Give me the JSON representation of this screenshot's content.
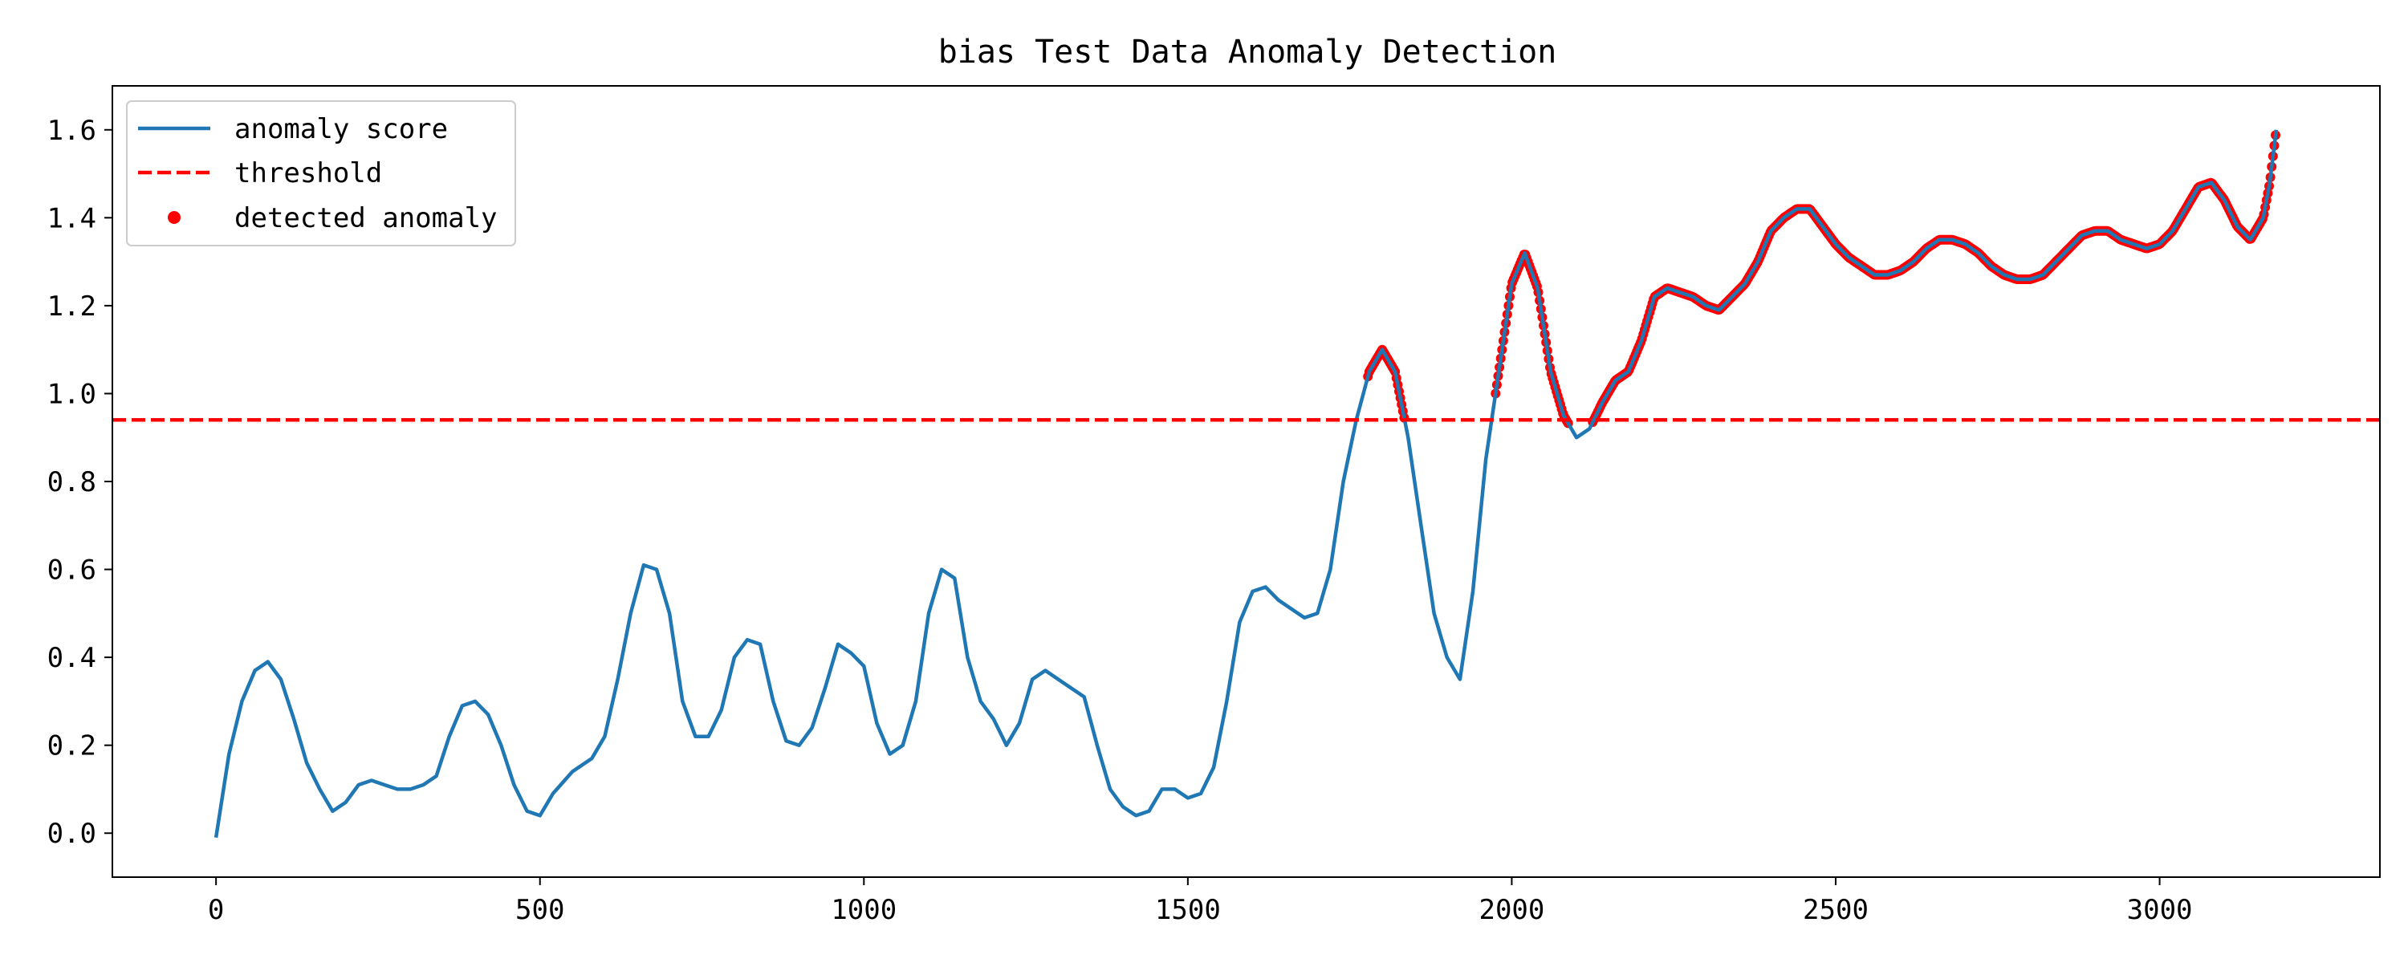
{
  "chart_data": {
    "type": "line",
    "title": "bias Test Data Anomaly Detection",
    "xlabel": "",
    "ylabel": "",
    "xlim": [
      -160,
      3340
    ],
    "ylim": [
      -0.1,
      1.7
    ],
    "xticks": [
      0,
      500,
      1000,
      1500,
      2000,
      2500,
      3000
    ],
    "yticks": [
      0.0,
      0.2,
      0.4,
      0.6,
      0.8,
      1.0,
      1.2,
      1.4,
      1.6
    ],
    "ytick_labels": [
      "0.0",
      "0.2",
      "0.4",
      "0.6",
      "0.8",
      "1.0",
      "1.2",
      "1.4",
      "1.6"
    ],
    "grid": false,
    "legend_position": "upper-left",
    "threshold": 0.94,
    "series": [
      {
        "name": "anomaly score",
        "style": "line",
        "color": "#1f77b4",
        "points": [
          [
            0,
            -0.01
          ],
          [
            20,
            0.18
          ],
          [
            40,
            0.3
          ],
          [
            60,
            0.37
          ],
          [
            80,
            0.39
          ],
          [
            100,
            0.35
          ],
          [
            120,
            0.26
          ],
          [
            140,
            0.16
          ],
          [
            160,
            0.1
          ],
          [
            180,
            0.05
          ],
          [
            200,
            0.07
          ],
          [
            220,
            0.11
          ],
          [
            240,
            0.12
          ],
          [
            260,
            0.11
          ],
          [
            280,
            0.1
          ],
          [
            300,
            0.1
          ],
          [
            320,
            0.11
          ],
          [
            340,
            0.13
          ],
          [
            360,
            0.22
          ],
          [
            380,
            0.29
          ],
          [
            400,
            0.3
          ],
          [
            420,
            0.27
          ],
          [
            440,
            0.2
          ],
          [
            460,
            0.11
          ],
          [
            480,
            0.05
          ],
          [
            500,
            0.04
          ],
          [
            520,
            0.09
          ],
          [
            550,
            0.14
          ],
          [
            580,
            0.17
          ],
          [
            600,
            0.22
          ],
          [
            620,
            0.35
          ],
          [
            640,
            0.5
          ],
          [
            660,
            0.61
          ],
          [
            680,
            0.6
          ],
          [
            700,
            0.5
          ],
          [
            720,
            0.3
          ],
          [
            740,
            0.22
          ],
          [
            760,
            0.22
          ],
          [
            780,
            0.28
          ],
          [
            800,
            0.4
          ],
          [
            820,
            0.44
          ],
          [
            840,
            0.43
          ],
          [
            860,
            0.3
          ],
          [
            880,
            0.21
          ],
          [
            900,
            0.2
          ],
          [
            920,
            0.24
          ],
          [
            940,
            0.33
          ],
          [
            960,
            0.43
          ],
          [
            980,
            0.41
          ],
          [
            1000,
            0.38
          ],
          [
            1020,
            0.25
          ],
          [
            1040,
            0.18
          ],
          [
            1060,
            0.2
          ],
          [
            1080,
            0.3
          ],
          [
            1100,
            0.5
          ],
          [
            1120,
            0.6
          ],
          [
            1140,
            0.58
          ],
          [
            1160,
            0.4
          ],
          [
            1180,
            0.3
          ],
          [
            1200,
            0.26
          ],
          [
            1220,
            0.2
          ],
          [
            1240,
            0.25
          ],
          [
            1260,
            0.35
          ],
          [
            1280,
            0.37
          ],
          [
            1300,
            0.35
          ],
          [
            1320,
            0.33
          ],
          [
            1340,
            0.31
          ],
          [
            1360,
            0.2
          ],
          [
            1380,
            0.1
          ],
          [
            1400,
            0.06
          ],
          [
            1420,
            0.04
          ],
          [
            1440,
            0.05
          ],
          [
            1460,
            0.1
          ],
          [
            1480,
            0.1
          ],
          [
            1500,
            0.08
          ],
          [
            1520,
            0.09
          ],
          [
            1540,
            0.15
          ],
          [
            1560,
            0.3
          ],
          [
            1580,
            0.48
          ],
          [
            1600,
            0.55
          ],
          [
            1620,
            0.56
          ],
          [
            1640,
            0.53
          ],
          [
            1660,
            0.51
          ],
          [
            1680,
            0.49
          ],
          [
            1700,
            0.5
          ],
          [
            1720,
            0.6
          ],
          [
            1740,
            0.8
          ],
          [
            1760,
            0.94
          ],
          [
            1780,
            1.05
          ],
          [
            1800,
            1.1
          ],
          [
            1820,
            1.05
          ],
          [
            1840,
            0.9
          ],
          [
            1860,
            0.7
          ],
          [
            1880,
            0.5
          ],
          [
            1900,
            0.4
          ],
          [
            1920,
            0.35
          ],
          [
            1940,
            0.55
          ],
          [
            1960,
            0.85
          ],
          [
            1980,
            1.05
          ],
          [
            2000,
            1.25
          ],
          [
            2020,
            1.32
          ],
          [
            2040,
            1.24
          ],
          [
            2060,
            1.05
          ],
          [
            2080,
            0.95
          ],
          [
            2100,
            0.9
          ],
          [
            2120,
            0.92
          ],
          [
            2140,
            0.98
          ],
          [
            2160,
            1.03
          ],
          [
            2180,
            1.05
          ],
          [
            2200,
            1.12
          ],
          [
            2220,
            1.22
          ],
          [
            2240,
            1.24
          ],
          [
            2260,
            1.23
          ],
          [
            2280,
            1.22
          ],
          [
            2300,
            1.2
          ],
          [
            2320,
            1.19
          ],
          [
            2340,
            1.22
          ],
          [
            2360,
            1.25
          ],
          [
            2380,
            1.3
          ],
          [
            2400,
            1.37
          ],
          [
            2420,
            1.4
          ],
          [
            2440,
            1.42
          ],
          [
            2460,
            1.42
          ],
          [
            2480,
            1.38
          ],
          [
            2500,
            1.34
          ],
          [
            2520,
            1.31
          ],
          [
            2540,
            1.29
          ],
          [
            2560,
            1.27
          ],
          [
            2580,
            1.27
          ],
          [
            2600,
            1.28
          ],
          [
            2620,
            1.3
          ],
          [
            2640,
            1.33
          ],
          [
            2660,
            1.35
          ],
          [
            2680,
            1.35
          ],
          [
            2700,
            1.34
          ],
          [
            2720,
            1.32
          ],
          [
            2740,
            1.29
          ],
          [
            2760,
            1.27
          ],
          [
            2780,
            1.26
          ],
          [
            2800,
            1.26
          ],
          [
            2820,
            1.27
          ],
          [
            2840,
            1.3
          ],
          [
            2860,
            1.33
          ],
          [
            2880,
            1.36
          ],
          [
            2900,
            1.37
          ],
          [
            2920,
            1.37
          ],
          [
            2940,
            1.35
          ],
          [
            2960,
            1.34
          ],
          [
            2980,
            1.33
          ],
          [
            3000,
            1.34
          ],
          [
            3020,
            1.37
          ],
          [
            3040,
            1.42
          ],
          [
            3060,
            1.47
          ],
          [
            3080,
            1.48
          ],
          [
            3100,
            1.44
          ],
          [
            3120,
            1.38
          ],
          [
            3140,
            1.35
          ],
          [
            3160,
            1.4
          ],
          [
            3170,
            1.48
          ],
          [
            3180,
            1.6
          ]
        ]
      },
      {
        "name": "threshold",
        "style": "dashed-line",
        "color": "#ff0000"
      },
      {
        "name": "detected anomaly",
        "style": "scatter",
        "color": "#ff0000",
        "segments": [
          [
            1778,
            1835
          ],
          [
            1975,
            2087
          ],
          [
            2125,
            3180
          ]
        ]
      }
    ]
  }
}
